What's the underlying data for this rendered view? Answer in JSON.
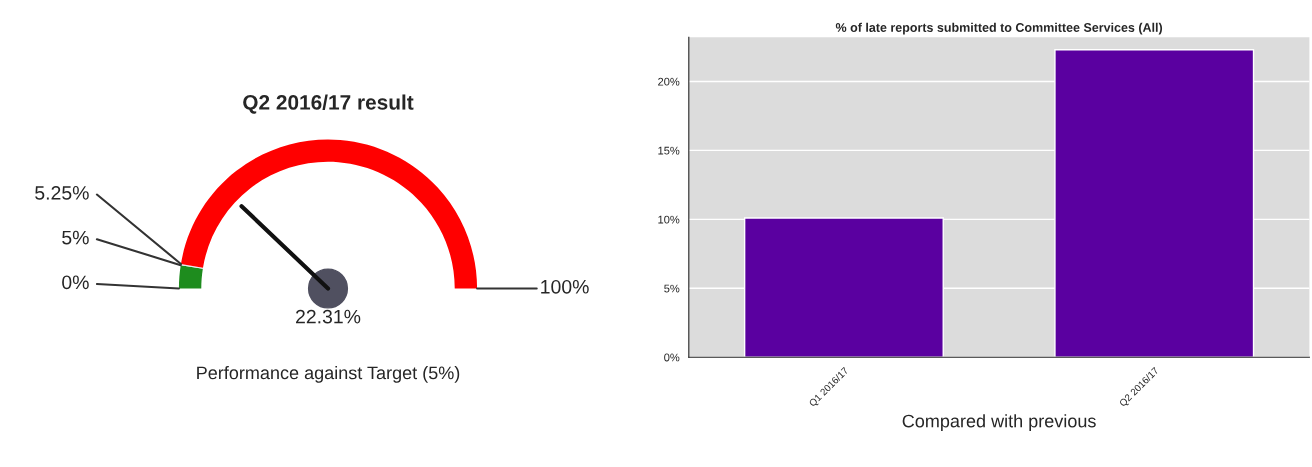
{
  "chart_data": [
    {
      "type": "donut",
      "title": "Q2 2016/17 result",
      "categories": [
        "0%",
        "5%",
        "5.25%"
      ],
      "values": [
        5,
        0.25,
        94.75
      ],
      "colors": [
        "#1e8c1e",
        "#e8e8f0",
        "#ff0000"
      ],
      "needle": "5.25%",
      "annotations": [
        "100%",
        "22.31%",
        "Performance against Target (5%)"
      ]
    },
    {
      "type": "bar",
      "title": "% of late reports submitted to Committee Services (All)",
      "categories": [
        "Q1 2016/17",
        "Q2 2016/17"
      ],
      "values": [
        10.1,
        22.3
      ],
      "color": "#5a00a0",
      "ylim": [
        0,
        23.2
      ],
      "yticks": [
        {
          "value": 0,
          "label": "0%"
        },
        {
          "value": 5,
          "label": "5%"
        },
        {
          "value": 10,
          "label": "10%"
        },
        {
          "value": 15,
          "label": "15%"
        },
        {
          "value": 20,
          "label": "20%"
        }
      ],
      "grid": "y",
      "xlabel": "Compared with previous"
    }
  ]
}
